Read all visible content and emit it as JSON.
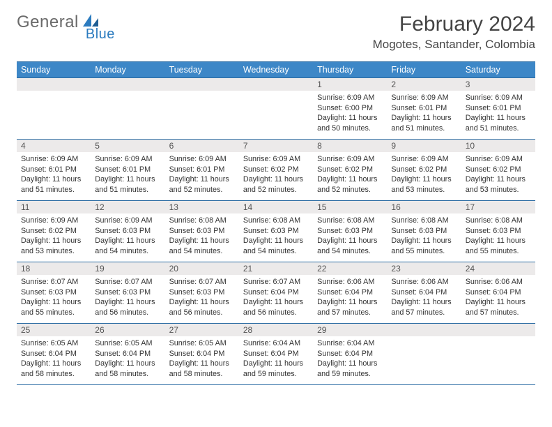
{
  "logo": {
    "text1": "General",
    "text2": "Blue"
  },
  "title": "February 2024",
  "location": "Mogotes, Santander, Colombia",
  "colors": {
    "header_bg": "#3d87c7",
    "header_border": "#2b6ca3",
    "daynum_bg": "#eceaea",
    "text": "#333333",
    "logo_gray": "#6a6a6a",
    "logo_blue": "#2b7bbf"
  },
  "weekdays": [
    "Sunday",
    "Monday",
    "Tuesday",
    "Wednesday",
    "Thursday",
    "Friday",
    "Saturday"
  ],
  "weeks": [
    [
      {
        "n": "",
        "sunrise": "",
        "sunset": "",
        "daylight": ""
      },
      {
        "n": "",
        "sunrise": "",
        "sunset": "",
        "daylight": ""
      },
      {
        "n": "",
        "sunrise": "",
        "sunset": "",
        "daylight": ""
      },
      {
        "n": "",
        "sunrise": "",
        "sunset": "",
        "daylight": ""
      },
      {
        "n": "1",
        "sunrise": "Sunrise: 6:09 AM",
        "sunset": "Sunset: 6:00 PM",
        "daylight": "Daylight: 11 hours and 50 minutes."
      },
      {
        "n": "2",
        "sunrise": "Sunrise: 6:09 AM",
        "sunset": "Sunset: 6:01 PM",
        "daylight": "Daylight: 11 hours and 51 minutes."
      },
      {
        "n": "3",
        "sunrise": "Sunrise: 6:09 AM",
        "sunset": "Sunset: 6:01 PM",
        "daylight": "Daylight: 11 hours and 51 minutes."
      }
    ],
    [
      {
        "n": "4",
        "sunrise": "Sunrise: 6:09 AM",
        "sunset": "Sunset: 6:01 PM",
        "daylight": "Daylight: 11 hours and 51 minutes."
      },
      {
        "n": "5",
        "sunrise": "Sunrise: 6:09 AM",
        "sunset": "Sunset: 6:01 PM",
        "daylight": "Daylight: 11 hours and 51 minutes."
      },
      {
        "n": "6",
        "sunrise": "Sunrise: 6:09 AM",
        "sunset": "Sunset: 6:01 PM",
        "daylight": "Daylight: 11 hours and 52 minutes."
      },
      {
        "n": "7",
        "sunrise": "Sunrise: 6:09 AM",
        "sunset": "Sunset: 6:02 PM",
        "daylight": "Daylight: 11 hours and 52 minutes."
      },
      {
        "n": "8",
        "sunrise": "Sunrise: 6:09 AM",
        "sunset": "Sunset: 6:02 PM",
        "daylight": "Daylight: 11 hours and 52 minutes."
      },
      {
        "n": "9",
        "sunrise": "Sunrise: 6:09 AM",
        "sunset": "Sunset: 6:02 PM",
        "daylight": "Daylight: 11 hours and 53 minutes."
      },
      {
        "n": "10",
        "sunrise": "Sunrise: 6:09 AM",
        "sunset": "Sunset: 6:02 PM",
        "daylight": "Daylight: 11 hours and 53 minutes."
      }
    ],
    [
      {
        "n": "11",
        "sunrise": "Sunrise: 6:09 AM",
        "sunset": "Sunset: 6:02 PM",
        "daylight": "Daylight: 11 hours and 53 minutes."
      },
      {
        "n": "12",
        "sunrise": "Sunrise: 6:09 AM",
        "sunset": "Sunset: 6:03 PM",
        "daylight": "Daylight: 11 hours and 54 minutes."
      },
      {
        "n": "13",
        "sunrise": "Sunrise: 6:08 AM",
        "sunset": "Sunset: 6:03 PM",
        "daylight": "Daylight: 11 hours and 54 minutes."
      },
      {
        "n": "14",
        "sunrise": "Sunrise: 6:08 AM",
        "sunset": "Sunset: 6:03 PM",
        "daylight": "Daylight: 11 hours and 54 minutes."
      },
      {
        "n": "15",
        "sunrise": "Sunrise: 6:08 AM",
        "sunset": "Sunset: 6:03 PM",
        "daylight": "Daylight: 11 hours and 54 minutes."
      },
      {
        "n": "16",
        "sunrise": "Sunrise: 6:08 AM",
        "sunset": "Sunset: 6:03 PM",
        "daylight": "Daylight: 11 hours and 55 minutes."
      },
      {
        "n": "17",
        "sunrise": "Sunrise: 6:08 AM",
        "sunset": "Sunset: 6:03 PM",
        "daylight": "Daylight: 11 hours and 55 minutes."
      }
    ],
    [
      {
        "n": "18",
        "sunrise": "Sunrise: 6:07 AM",
        "sunset": "Sunset: 6:03 PM",
        "daylight": "Daylight: 11 hours and 55 minutes."
      },
      {
        "n": "19",
        "sunrise": "Sunrise: 6:07 AM",
        "sunset": "Sunset: 6:03 PM",
        "daylight": "Daylight: 11 hours and 56 minutes."
      },
      {
        "n": "20",
        "sunrise": "Sunrise: 6:07 AM",
        "sunset": "Sunset: 6:03 PM",
        "daylight": "Daylight: 11 hours and 56 minutes."
      },
      {
        "n": "21",
        "sunrise": "Sunrise: 6:07 AM",
        "sunset": "Sunset: 6:04 PM",
        "daylight": "Daylight: 11 hours and 56 minutes."
      },
      {
        "n": "22",
        "sunrise": "Sunrise: 6:06 AM",
        "sunset": "Sunset: 6:04 PM",
        "daylight": "Daylight: 11 hours and 57 minutes."
      },
      {
        "n": "23",
        "sunrise": "Sunrise: 6:06 AM",
        "sunset": "Sunset: 6:04 PM",
        "daylight": "Daylight: 11 hours and 57 minutes."
      },
      {
        "n": "24",
        "sunrise": "Sunrise: 6:06 AM",
        "sunset": "Sunset: 6:04 PM",
        "daylight": "Daylight: 11 hours and 57 minutes."
      }
    ],
    [
      {
        "n": "25",
        "sunrise": "Sunrise: 6:05 AM",
        "sunset": "Sunset: 6:04 PM",
        "daylight": "Daylight: 11 hours and 58 minutes."
      },
      {
        "n": "26",
        "sunrise": "Sunrise: 6:05 AM",
        "sunset": "Sunset: 6:04 PM",
        "daylight": "Daylight: 11 hours and 58 minutes."
      },
      {
        "n": "27",
        "sunrise": "Sunrise: 6:05 AM",
        "sunset": "Sunset: 6:04 PM",
        "daylight": "Daylight: 11 hours and 58 minutes."
      },
      {
        "n": "28",
        "sunrise": "Sunrise: 6:04 AM",
        "sunset": "Sunset: 6:04 PM",
        "daylight": "Daylight: 11 hours and 59 minutes."
      },
      {
        "n": "29",
        "sunrise": "Sunrise: 6:04 AM",
        "sunset": "Sunset: 6:04 PM",
        "daylight": "Daylight: 11 hours and 59 minutes."
      },
      {
        "n": "",
        "sunrise": "",
        "sunset": "",
        "daylight": ""
      },
      {
        "n": "",
        "sunrise": "",
        "sunset": "",
        "daylight": ""
      }
    ]
  ]
}
